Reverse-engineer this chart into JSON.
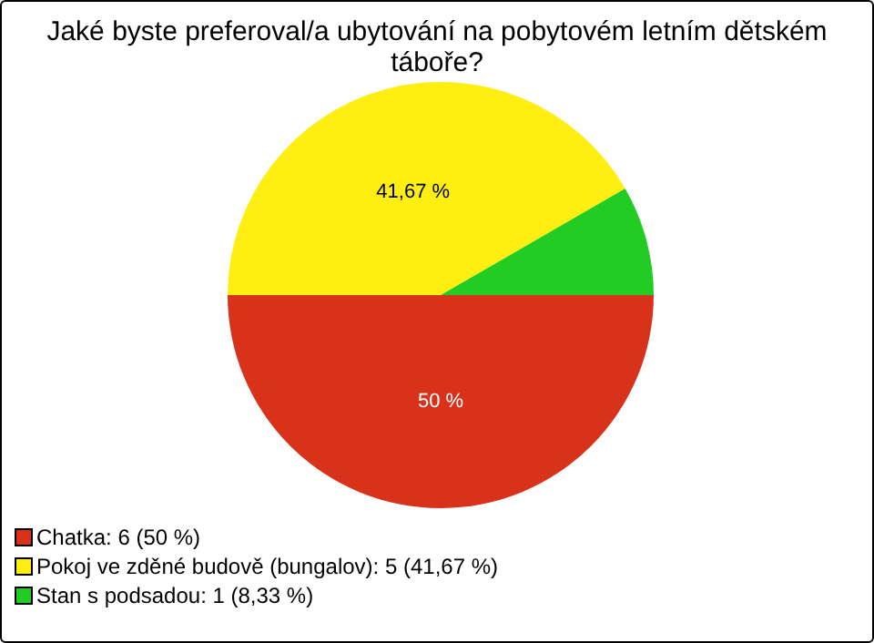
{
  "chart_data": {
    "type": "pie",
    "title": "Jaké byste preferoval/a ubytování na pobytovém letním dětském táboře?",
    "categories": [
      "Chatka: 6 (50 %)",
      "Pokoj ve zděné budově (bungalov): 5 (41,67 %)",
      "Stan s podsadou: 1 (8,33 %)"
    ],
    "values": [
      50,
      41.67,
      8.33
    ],
    "colors": [
      "#d8321a",
      "#ffee11",
      "#22cc22"
    ],
    "value_labels": [
      "50 %",
      "41,67 %",
      null
    ],
    "legend": "bottom left"
  }
}
